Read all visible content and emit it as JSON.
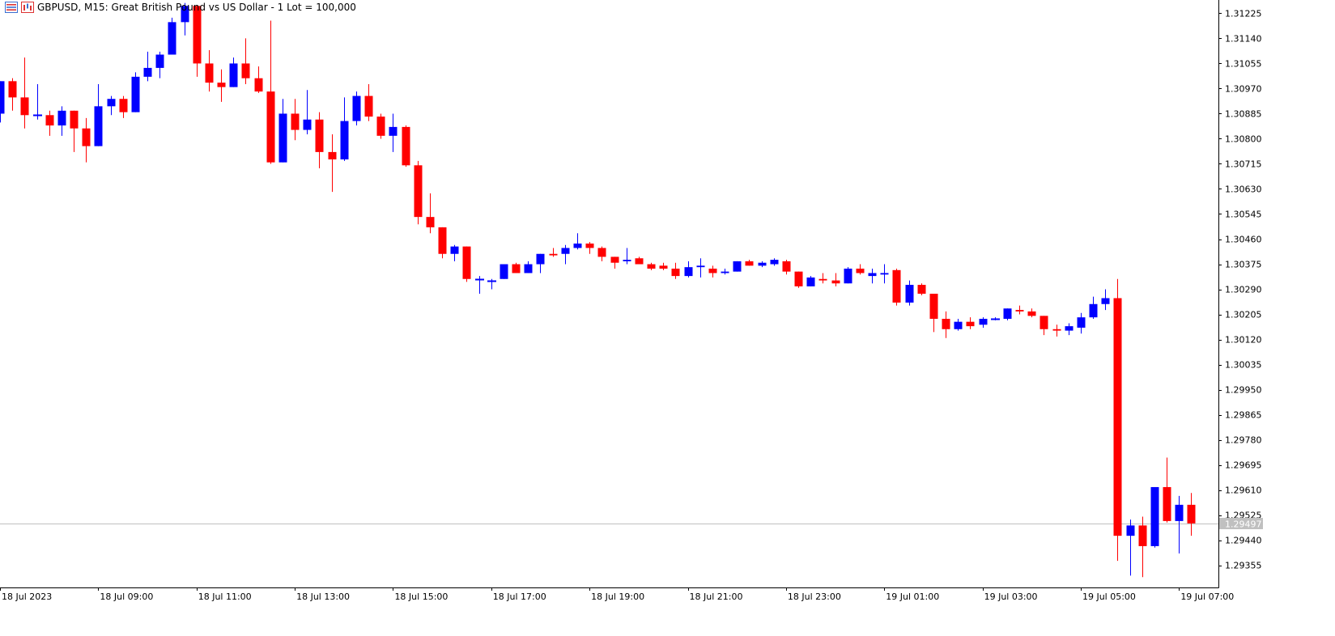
{
  "header": {
    "symbol_text": "GBPUSD, M15:  Great British Pound vs US Dollar - 1 Lot = 100,000",
    "icons": [
      "list-icon",
      "chart-window-icon"
    ]
  },
  "colors": {
    "bull": "#0000ff",
    "bear": "#ff0000",
    "axis": "#000000",
    "price_line": "#c0c0c0",
    "price_tag_bg": "#c0c0c0",
    "price_tag_text": "#ffffff"
  },
  "chart_data": {
    "type": "candlestick",
    "symbol": "GBPUSD",
    "timeframe": "M15",
    "ylim": [
      1.2928,
      1.3127
    ],
    "y_ticks": [
      "1.31225",
      "1.31140",
      "1.31055",
      "1.30970",
      "1.30885",
      "1.30800",
      "1.30715",
      "1.30630",
      "1.30545",
      "1.30460",
      "1.30375",
      "1.30290",
      "1.30205",
      "1.30120",
      "1.30035",
      "1.29950",
      "1.29865",
      "1.29780",
      "1.29695",
      "1.29610",
      "1.29525",
      "1.29440",
      "1.29355"
    ],
    "x_labels": [
      {
        "index": 0,
        "label": "18 Jul 2023"
      },
      {
        "index": 8,
        "label": "18 Jul 09:00"
      },
      {
        "index": 16,
        "label": "18 Jul 11:00"
      },
      {
        "index": 24,
        "label": "18 Jul 13:00"
      },
      {
        "index": 32,
        "label": "18 Jul 15:00"
      },
      {
        "index": 40,
        "label": "18 Jul 17:00"
      },
      {
        "index": 48,
        "label": "18 Jul 19:00"
      },
      {
        "index": 56,
        "label": "18 Jul 21:00"
      },
      {
        "index": 64,
        "label": "18 Jul 23:00"
      },
      {
        "index": 72,
        "label": "19 Jul 01:00"
      },
      {
        "index": 80,
        "label": "19 Jul 03:00"
      },
      {
        "index": 88,
        "label": "19 Jul 05:00"
      },
      {
        "index": 96,
        "label": "19 Jul 07:00"
      }
    ],
    "current_price": "1.29497",
    "candles": [
      [
        1.30885,
        1.30995,
        1.30855,
        1.30995
      ],
      [
        1.30995,
        1.31005,
        1.30895,
        1.3094
      ],
      [
        1.3094,
        1.31075,
        1.30835,
        1.3088
      ],
      [
        1.3088,
        1.30985,
        1.30865,
        1.3088
      ],
      [
        1.3088,
        1.30895,
        1.3081,
        1.30845
      ],
      [
        1.30845,
        1.3091,
        1.3081,
        1.30895
      ],
      [
        1.30895,
        1.30895,
        1.30755,
        1.30835
      ],
      [
        1.30835,
        1.3087,
        1.3072,
        1.30775
      ],
      [
        1.30775,
        1.30985,
        1.30775,
        1.3091
      ],
      [
        1.3091,
        1.30945,
        1.3088,
        1.30935
      ],
      [
        1.30935,
        1.30945,
        1.3087,
        1.3089
      ],
      [
        1.3089,
        1.31025,
        1.3089,
        1.3101
      ],
      [
        1.3101,
        1.31095,
        1.30995,
        1.3104
      ],
      [
        1.3104,
        1.31095,
        1.31005,
        1.31085
      ],
      [
        1.31085,
        1.3121,
        1.31085,
        1.31195
      ],
      [
        1.31195,
        1.3126,
        1.3115,
        1.3125
      ],
      [
        1.3125,
        1.3125,
        1.3101,
        1.31055
      ],
      [
        1.31055,
        1.311,
        1.3096,
        1.3099
      ],
      [
        1.3099,
        1.31035,
        1.30925,
        1.30975
      ],
      [
        1.30975,
        1.31075,
        1.30975,
        1.31055
      ],
      [
        1.31055,
        1.3114,
        1.30985,
        1.31005
      ],
      [
        1.31005,
        1.31045,
        1.30955,
        1.3096
      ],
      [
        1.3096,
        1.312,
        1.30715,
        1.3072
      ],
      [
        1.3072,
        1.30935,
        1.3072,
        1.30885
      ],
      [
        1.30885,
        1.30935,
        1.30795,
        1.3083
      ],
      [
        1.3083,
        1.30965,
        1.30815,
        1.30865
      ],
      [
        1.30865,
        1.3089,
        1.307,
        1.30755
      ],
      [
        1.30755,
        1.30815,
        1.3062,
        1.3073
      ],
      [
        1.3073,
        1.3094,
        1.30725,
        1.3086
      ],
      [
        1.3086,
        1.3096,
        1.30845,
        1.30945
      ],
      [
        1.30945,
        1.30985,
        1.3086,
        1.30875
      ],
      [
        1.30875,
        1.30885,
        1.308,
        1.3081
      ],
      [
        1.3081,
        1.30885,
        1.30755,
        1.3084
      ],
      [
        1.3084,
        1.30845,
        1.30705,
        1.3071
      ],
      [
        1.3071,
        1.30725,
        1.3051,
        1.30535
      ],
      [
        1.30535,
        1.30615,
        1.3048,
        1.305
      ],
      [
        1.305,
        1.305,
        1.30395,
        1.3041
      ],
      [
        1.3041,
        1.3044,
        1.30385,
        1.30435
      ],
      [
        1.30435,
        1.30435,
        1.30315,
        1.30325
      ],
      [
        1.30325,
        1.30335,
        1.30275,
        1.30325
      ],
      [
        1.3032,
        1.30325,
        1.3029,
        1.3032
      ],
      [
        1.30325,
        1.30375,
        1.30325,
        1.30375
      ],
      [
        1.30375,
        1.3038,
        1.30345,
        1.30345
      ],
      [
        1.30345,
        1.30385,
        1.30345,
        1.30375
      ],
      [
        1.30375,
        1.3041,
        1.30345,
        1.3041
      ],
      [
        1.3041,
        1.3043,
        1.304,
        1.30405
      ],
      [
        1.3041,
        1.3044,
        1.30375,
        1.3043
      ],
      [
        1.3043,
        1.3048,
        1.30425,
        1.30445
      ],
      [
        1.30445,
        1.3045,
        1.3041,
        1.3043
      ],
      [
        1.3043,
        1.30435,
        1.30385,
        1.304
      ],
      [
        1.304,
        1.304,
        1.3036,
        1.3038
      ],
      [
        1.30385,
        1.3043,
        1.30375,
        1.3039
      ],
      [
        1.30395,
        1.304,
        1.30375,
        1.30375
      ],
      [
        1.30375,
        1.3038,
        1.30355,
        1.3036
      ],
      [
        1.3037,
        1.3038,
        1.30355,
        1.3036
      ],
      [
        1.3036,
        1.3038,
        1.30325,
        1.30335
      ],
      [
        1.30335,
        1.30385,
        1.3033,
        1.30365
      ],
      [
        1.30365,
        1.30395,
        1.3033,
        1.3037
      ],
      [
        1.3036,
        1.3037,
        1.3033,
        1.30345
      ],
      [
        1.30345,
        1.3036,
        1.3034,
        1.3035
      ],
      [
        1.3035,
        1.30385,
        1.3035,
        1.30385
      ],
      [
        1.30385,
        1.3039,
        1.3037,
        1.3037
      ],
      [
        1.3037,
        1.30385,
        1.30365,
        1.3038
      ],
      [
        1.30375,
        1.30395,
        1.3037,
        1.3039
      ],
      [
        1.30385,
        1.3039,
        1.3034,
        1.3035
      ],
      [
        1.3035,
        1.3035,
        1.30295,
        1.303
      ],
      [
        1.303,
        1.30335,
        1.303,
        1.3033
      ],
      [
        1.30325,
        1.30345,
        1.3031,
        1.3032
      ],
      [
        1.3032,
        1.30345,
        1.303,
        1.3031
      ],
      [
        1.3031,
        1.30365,
        1.3031,
        1.3036
      ],
      [
        1.3036,
        1.30375,
        1.3034,
        1.30345
      ],
      [
        1.30335,
        1.3036,
        1.3031,
        1.30345
      ],
      [
        1.3034,
        1.30375,
        1.3031,
        1.30345
      ],
      [
        1.30355,
        1.3036,
        1.30235,
        1.30245
      ],
      [
        1.30245,
        1.3032,
        1.30235,
        1.30305
      ],
      [
        1.30305,
        1.3031,
        1.3027,
        1.30275
      ],
      [
        1.30275,
        1.30275,
        1.30145,
        1.3019
      ],
      [
        1.3019,
        1.30215,
        1.30125,
        1.30155
      ],
      [
        1.30155,
        1.3019,
        1.3015,
        1.3018
      ],
      [
        1.3018,
        1.30195,
        1.30155,
        1.30165
      ],
      [
        1.3017,
        1.30195,
        1.3016,
        1.3019
      ],
      [
        1.3019,
        1.30195,
        1.30185,
        1.3019
      ],
      [
        1.3019,
        1.30225,
        1.30185,
        1.30225
      ],
      [
        1.3022,
        1.30235,
        1.30205,
        1.30215
      ],
      [
        1.30215,
        1.30225,
        1.30195,
        1.302
      ],
      [
        1.302,
        1.302,
        1.30135,
        1.30155
      ],
      [
        1.30155,
        1.3017,
        1.3013,
        1.3015
      ],
      [
        1.3015,
        1.30175,
        1.30135,
        1.30165
      ],
      [
        1.3016,
        1.3021,
        1.3014,
        1.30195
      ],
      [
        1.30195,
        1.30265,
        1.3019,
        1.3024
      ],
      [
        1.3024,
        1.3029,
        1.3022,
        1.3026
      ],
      [
        1.3026,
        1.30325,
        1.2937,
        1.29455
      ],
      [
        1.29455,
        1.2951,
        1.2932,
        1.2949
      ],
      [
        1.2949,
        1.2952,
        1.29315,
        1.2942
      ],
      [
        1.2942,
        1.2962,
        1.29415,
        1.2962
      ],
      [
        1.2962,
        1.2972,
        1.295,
        1.29505
      ],
      [
        1.29505,
        1.2959,
        1.29395,
        1.2956
      ],
      [
        1.2956,
        1.296,
        1.29455,
        1.29497
      ]
    ]
  }
}
